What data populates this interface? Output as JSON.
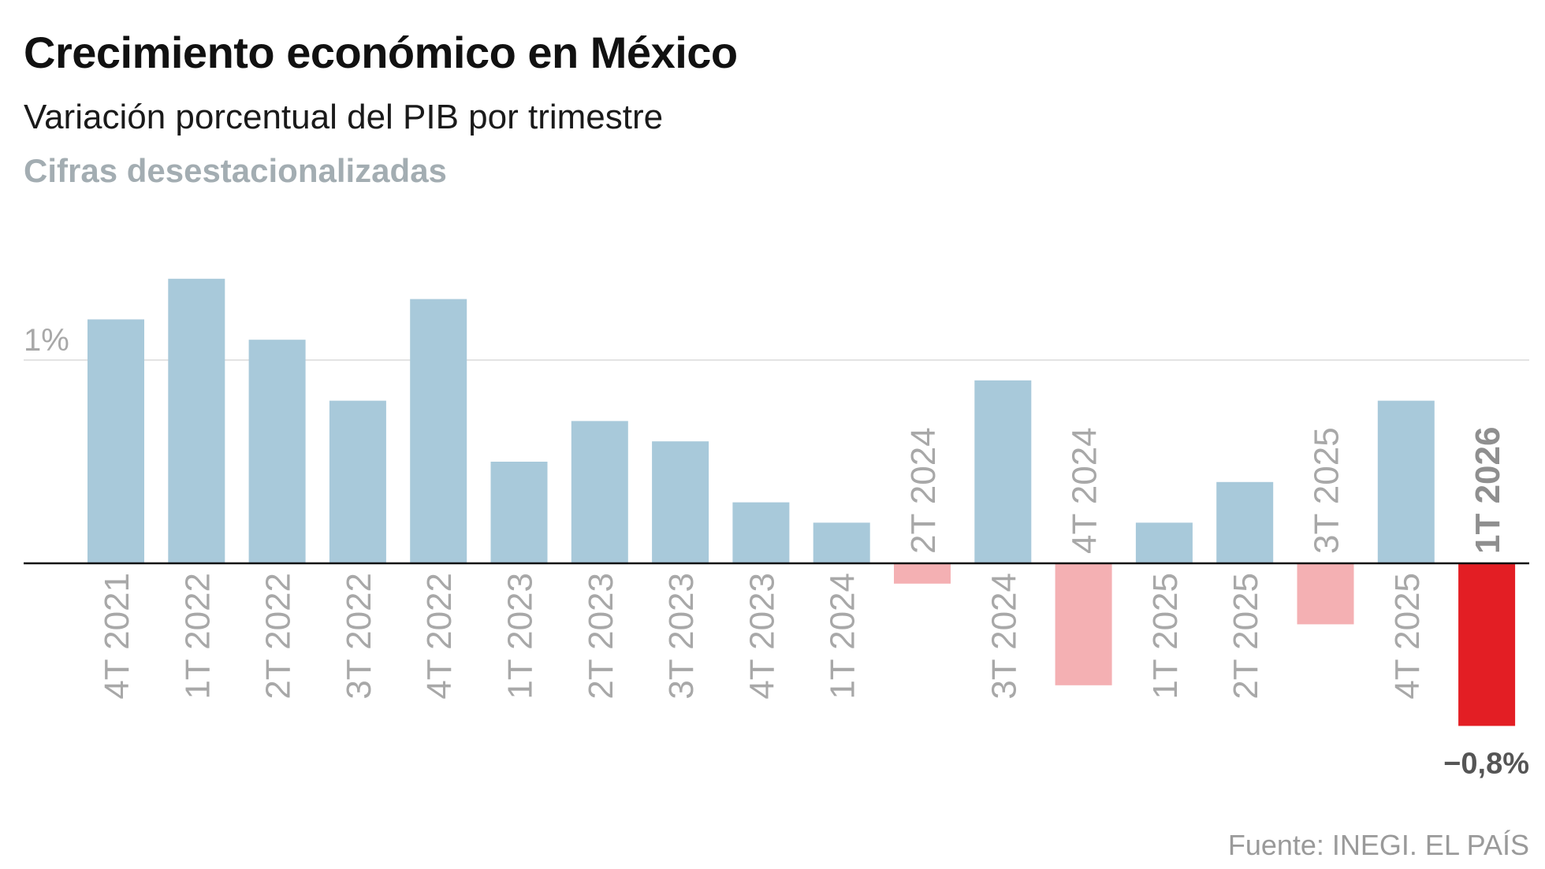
{
  "header": {
    "title": "Crecimiento económico en México",
    "subtitle": "Variación porcentual del PIB por trimestre",
    "note": "Cifras desestacionalizadas"
  },
  "footer": {
    "source": "Fuente: INEGI. EL PAÍS"
  },
  "colors": {
    "positive": "#a8c9da",
    "negative": "#f4b0b3",
    "highlight": "#e31e24",
    "axis": "#111111",
    "grid": "#e3e3e3"
  },
  "chart_data": {
    "type": "bar",
    "title": "Crecimiento económico en México",
    "subtitle": "Variación porcentual del PIB por trimestre",
    "xlabel": "",
    "ylabel": "",
    "ylim": [
      -0.8,
      1.4
    ],
    "yticks": [
      {
        "value": 1,
        "label": "1%"
      }
    ],
    "grid": true,
    "categories": [
      "4T 2021",
      "1T 2022",
      "2T 2022",
      "3T 2022",
      "4T 2022",
      "1T 2023",
      "2T 2023",
      "3T 2023",
      "4T 2023",
      "1T 2024",
      "2T 2024",
      "3T 2024",
      "4T 2024",
      "1T 2025",
      "2T 2025",
      "3T 2025",
      "4T 2025",
      "1T 2026"
    ],
    "values": [
      1.2,
      1.4,
      1.1,
      0.8,
      1.3,
      0.5,
      0.7,
      0.6,
      0.3,
      0.2,
      -0.1,
      0.9,
      -0.6,
      0.2,
      0.4,
      -0.3,
      0.8,
      -0.8
    ],
    "highlight_index": 17,
    "annotations": [
      {
        "category": "1T 2026",
        "label": "−0,8%"
      }
    ]
  }
}
